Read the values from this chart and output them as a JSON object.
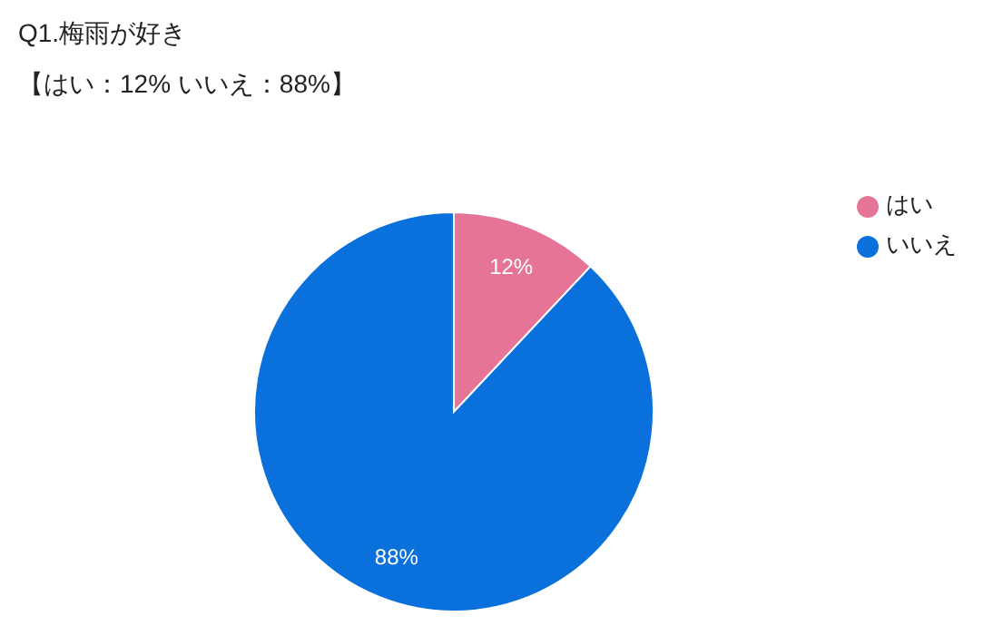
{
  "chart_data": {
    "type": "pie",
    "title": "Q1.梅雨が好き",
    "subtitle": "【はい：12% いいえ：88%】",
    "categories": [
      "はい",
      "いいえ"
    ],
    "values": [
      12,
      88
    ],
    "colors": [
      "#e57496",
      "#0a70dc"
    ],
    "value_labels": [
      "12%",
      "88%"
    ],
    "legend": "top right"
  }
}
